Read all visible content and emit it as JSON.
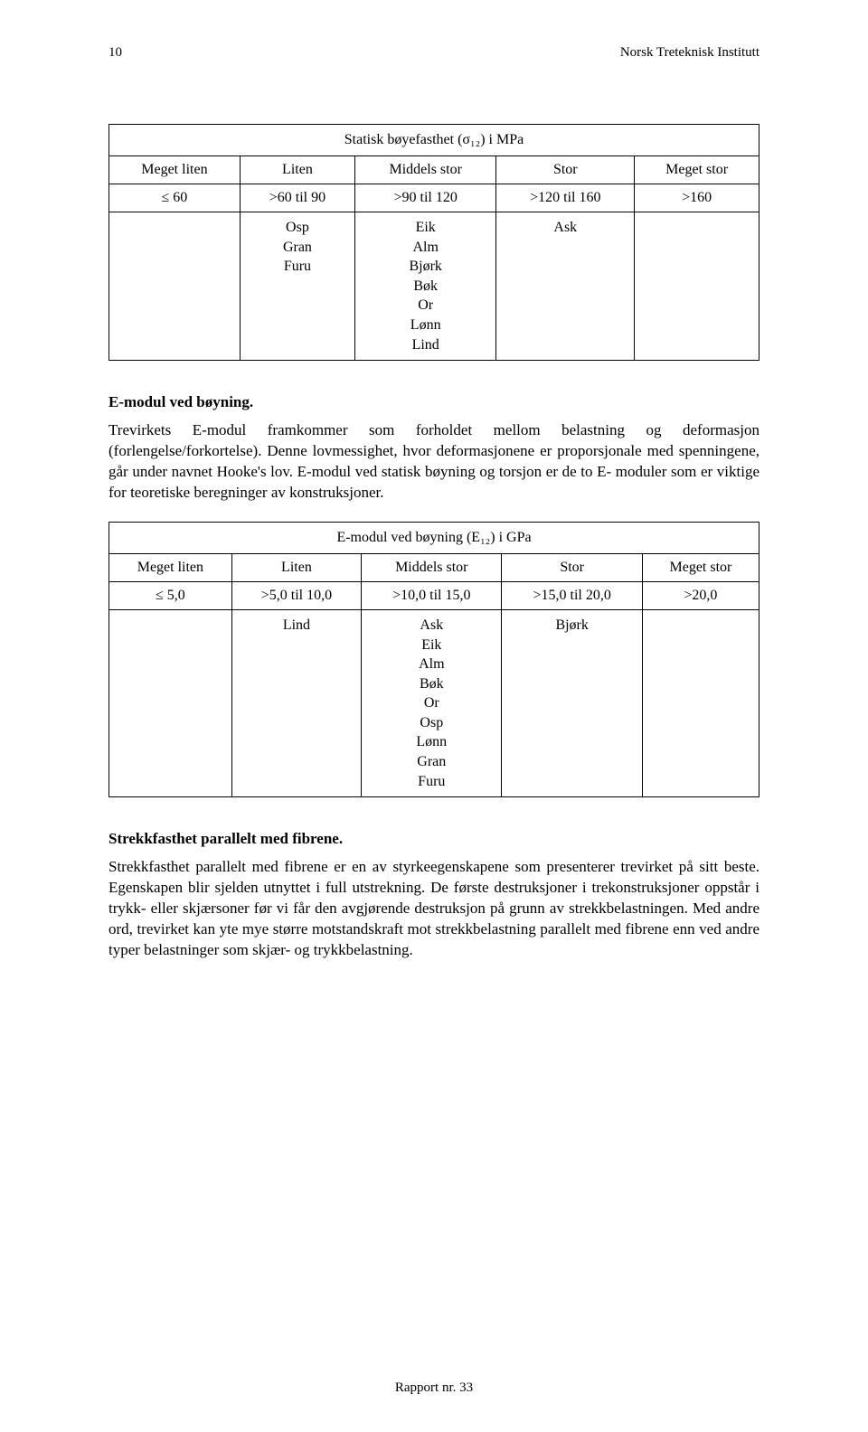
{
  "header": {
    "page_number": "10",
    "institute": "Norsk Treteknisk Institutt"
  },
  "table1": {
    "title": "Statisk bøyefasthet (σ₁₂) i MPa",
    "headers": [
      "Meget liten",
      "Liten",
      "Middels stor",
      "Stor",
      "Meget stor"
    ],
    "ranges": [
      "≤ 60",
      ">60 til 90",
      ">90 til 120",
      ">120 til 160",
      ">160"
    ],
    "species": {
      "col2": "Osp\nGran\nFuru",
      "col3": "Eik\nAlm\nBjørk\nBøk\nOr\nLønn\nLind",
      "col4": "Ask"
    }
  },
  "section1": {
    "heading": "E-modul ved bøyning.",
    "body": "Trevirkets E-modul framkommer som forholdet mellom belastning og deformasjon (forlengelse/forkortelse). Denne lovmessighet, hvor deformasjonene er proporsjonale med spenningene, går under navnet Hooke's lov. E-modul ved statisk bøyning og torsjon er de to E- moduler som er viktige for teoretiske beregninger av konstruksjoner."
  },
  "table2": {
    "title": "E-modul ved bøyning (E₁₂) i GPa",
    "headers": [
      "Meget liten",
      "Liten",
      "Middels stor",
      "Stor",
      "Meget stor"
    ],
    "ranges": [
      "≤ 5,0",
      ">5,0 til 10,0",
      ">10,0 til 15,0",
      ">15,0 til 20,0",
      ">20,0"
    ],
    "species": {
      "col2": "Lind",
      "col3": "Ask\nEik\nAlm\nBøk\nOr\nOsp\nLønn\nGran\nFuru",
      "col4": "Bjørk"
    }
  },
  "section2": {
    "heading": "Strekkfasthet parallelt med fibrene.",
    "body": "Strekkfasthet parallelt med fibrene er en av styrkeegenskapene som presenterer trevirket på sitt beste. Egenskapen blir sjelden utnyttet i full utstrekning. De første destruksjoner i trekonstruksjoner oppstår i trykk- eller skjærsoner før vi får den avgjørende destruksjon på grunn av strekkbelastningen. Med andre ord, trevirket kan yte mye større motstandskraft mot strekkbelastning parallelt med fibrene enn ved andre typer belastninger som skjær- og trykkbelastning."
  },
  "footer": {
    "text": "Rapport nr. 33"
  }
}
